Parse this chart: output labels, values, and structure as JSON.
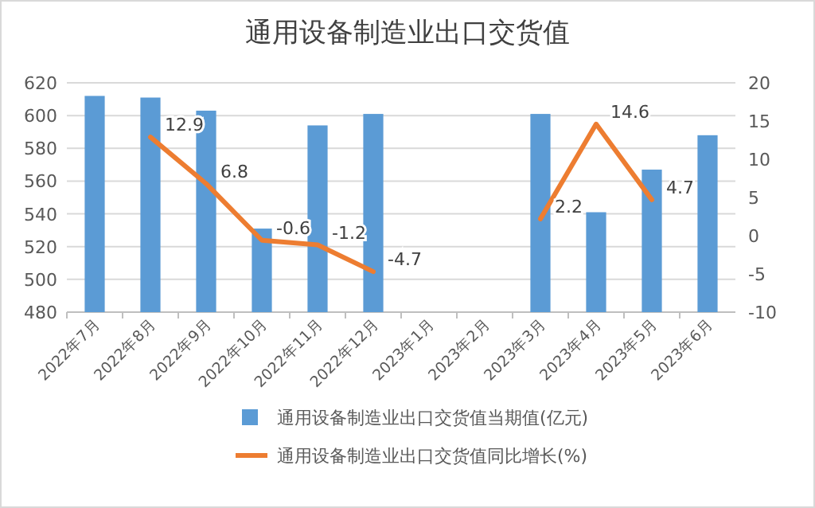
{
  "chart_data": {
    "type": "bar",
    "title": "通用设备制造业出口交货值",
    "categories": [
      "2022年7月",
      "2022年8月",
      "2022年9月",
      "2022年10月",
      "2022年11月",
      "2022年12月",
      "2023年1月",
      "2023年2月",
      "2023年3月",
      "2023年4月",
      "2023年5月",
      "2023年6月"
    ],
    "series": [
      {
        "name": "通用设备制造业出口交货值当期值(亿元)",
        "color": "#5b9bd5",
        "values": [
          612,
          611,
          603,
          531,
          594,
          601,
          null,
          null,
          601,
          541,
          567,
          588
        ]
      },
      {
        "name": "通用设备制造业出口交货值同比增长(%)",
        "type": "line",
        "axis": "y2",
        "color": "#ed7d31",
        "values": [
          null,
          12.9,
          6.8,
          -0.6,
          -1.2,
          -4.7,
          null,
          null,
          2.2,
          14.6,
          4.7,
          null
        ],
        "value_labels": [
          null,
          "12.9",
          "6.8",
          "-0.6",
          "-1.2",
          "-4.7",
          null,
          null,
          "2.2",
          "14.6",
          "4.7",
          null
        ]
      }
    ],
    "ylim": [
      480,
      620
    ],
    "yticks": [
      480,
      500,
      520,
      540,
      560,
      580,
      600,
      620
    ],
    "y2lim": [
      -10,
      20
    ],
    "y2ticks": [
      -10,
      -5,
      0,
      5,
      10,
      15,
      20
    ],
    "grid": "y",
    "legend": "bottom"
  }
}
